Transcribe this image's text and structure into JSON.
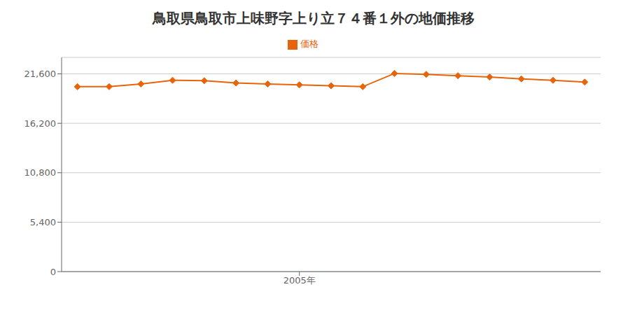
{
  "chart_data": {
    "type": "line",
    "title": "鳥取県鳥取市上味野字上り立７４番１外の地価推移",
    "x": [
      1998,
      1999,
      2000,
      2001,
      2002,
      2003,
      2004,
      2005,
      2006,
      2007,
      2008,
      2009,
      2010,
      2011,
      2012,
      2013,
      2014
    ],
    "series": [
      {
        "name": "価格",
        "color": "#e8640a",
        "marker": "diamond",
        "values": [
          20200,
          20200,
          20500,
          20900,
          20850,
          20600,
          20500,
          20400,
          20300,
          20200,
          21650,
          21550,
          21400,
          21250,
          21050,
          20900,
          20700
        ]
      }
    ],
    "xlim": [
      1997.5,
      2014.5
    ],
    "xticks": [
      {
        "value": 2005,
        "label": "2005年"
      }
    ],
    "ylim": [
      0,
      23400
    ],
    "yticks": [
      0,
      {
        "value": 5400,
        "label": "5,400"
      },
      {
        "value": 10800,
        "label": "10,800"
      },
      {
        "value": 16200,
        "label": "16,200"
      },
      {
        "value": 21600,
        "label": "21,600"
      }
    ],
    "grid": true,
    "legend": "top"
  }
}
